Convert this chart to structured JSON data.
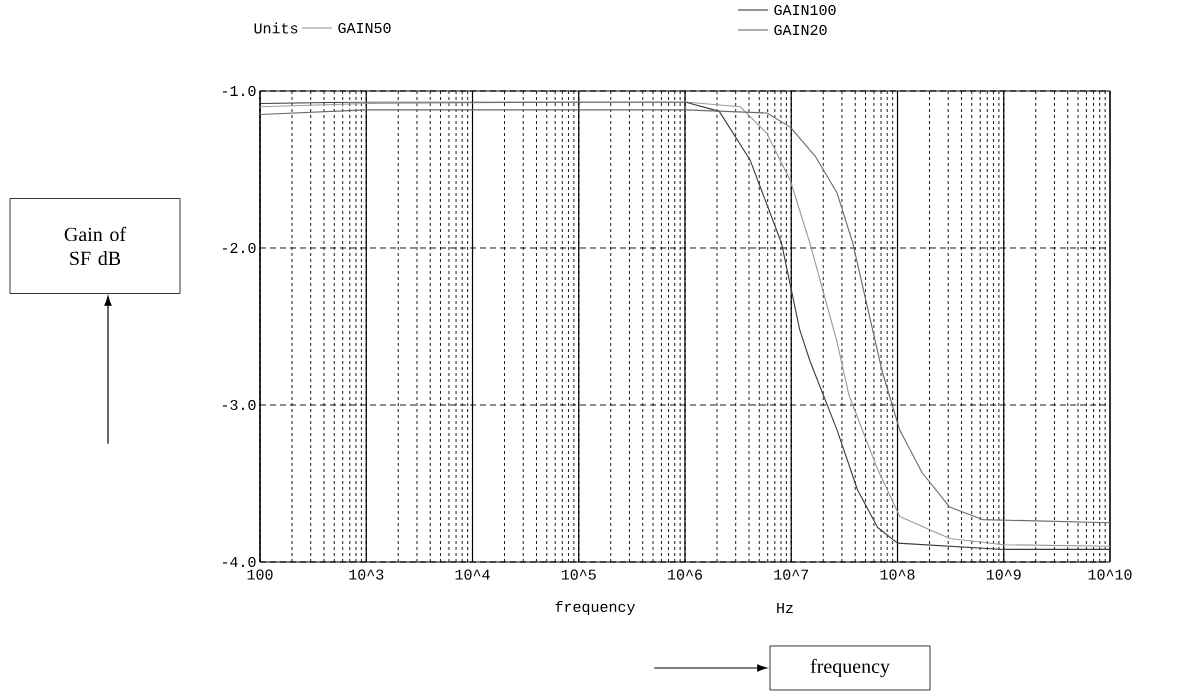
{
  "chart_data": {
    "type": "line",
    "ylabel": "Units",
    "xlabel": "frequency",
    "annotations": [
      "Hz",
      "Gain of SF dB",
      "frequency"
    ],
    "log": "x",
    "grid": true,
    "legend": "top",
    "xlim": [
      100,
      10000000000
    ],
    "ylim": [
      -4,
      -1
    ],
    "xticks": [
      100,
      {
        "value": 1000,
        "label": "10^3"
      },
      {
        "value": 10000,
        "label": "10^4"
      },
      {
        "value": 100000,
        "label": "10^5"
      },
      {
        "value": 1000000,
        "label": "10^6"
      },
      {
        "value": 10000000,
        "label": "10^7"
      },
      {
        "value": 100000000,
        "label": "10^8"
      },
      {
        "value": 1000000000,
        "label": "10^9"
      },
      {
        "value": 10000000000,
        "label": "10^10"
      }
    ],
    "yticks": [
      {
        "value": -1,
        "label": "-1.0"
      },
      {
        "value": -2,
        "label": "-2.0"
      },
      {
        "value": -3,
        "label": "-3.0"
      },
      {
        "value": -4,
        "label": "-4.0"
      }
    ],
    "series": [
      {
        "name": "GAIN50",
        "color": "#9a9a9a",
        "x": [
          100,
          1000,
          100000,
          1000000,
          3300000,
          5900000,
          9800000,
          15000000,
          27000000,
          35000000,
          65000000,
          105000000,
          310000000,
          1000000000,
          10000000000
        ],
        "values": [
          -1.1,
          -1.08,
          -1.07,
          -1.07,
          -1.1,
          -1.27,
          -1.57,
          -1.97,
          -2.6,
          -2.94,
          -3.41,
          -3.71,
          -3.85,
          -3.89,
          -3.9
        ]
      },
      {
        "name": "GAIN100",
        "color": "#3a3a3a",
        "x": [
          100,
          1000,
          10000,
          100000,
          1000000,
          2100000,
          4100000,
          8100000,
          12000000,
          15000000,
          27000000,
          42000000,
          65000000,
          100000000,
          1000000000,
          10000000000
        ],
        "values": [
          -1.08,
          -1.07,
          -1.07,
          -1.07,
          -1.07,
          -1.13,
          -1.44,
          -1.97,
          -2.52,
          -2.72,
          -3.16,
          -3.54,
          -3.78,
          -3.88,
          -3.92,
          -3.92
        ]
      },
      {
        "name": "GAIN20",
        "color": "#6a6a6a",
        "x": [
          100,
          1000,
          100000,
          1000000,
          5900000,
          9800000,
          17000000,
          27000000,
          38000000,
          51000000,
          72000000,
          105000000,
          170000000,
          310000000,
          630000000,
          10000000000
        ],
        "values": [
          -1.15,
          -1.12,
          -1.12,
          -1.12,
          -1.14,
          -1.23,
          -1.42,
          -1.65,
          -1.97,
          -2.35,
          -2.79,
          -3.16,
          -3.43,
          -3.65,
          -3.73,
          -3.75
        ]
      }
    ]
  }
}
